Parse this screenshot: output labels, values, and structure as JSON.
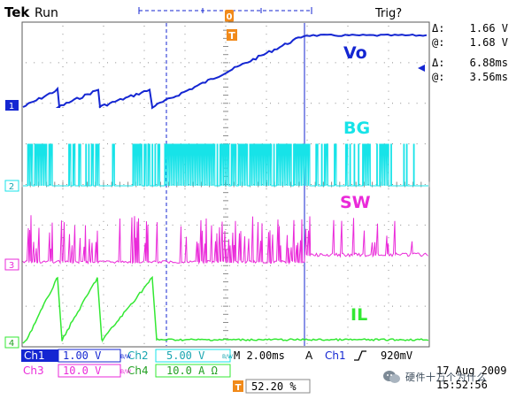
{
  "header": {
    "brand": "Tek",
    "run_state": "Run",
    "trig_state": "Trig?"
  },
  "trigger_marker": {
    "top_glyph": "T",
    "position_label": "0"
  },
  "cursor_readout": {
    "voltage_delta_label": "Δ:",
    "voltage_delta": "1.66 V",
    "voltage_at_label": "@:",
    "voltage_at": "1.68 V",
    "time_delta_label": "Δ:",
    "time_delta": "6.88ms",
    "time_at_label": "@:",
    "time_at": "3.56ms"
  },
  "trace_labels": {
    "vo": "Vo",
    "bg": "BG",
    "sw": "SW",
    "il": "IL"
  },
  "channel_markers": [
    "1",
    "2",
    "3",
    "4"
  ],
  "status_bar": {
    "ch1_label": "Ch1",
    "ch1_scale": "1.00 V",
    "ch2_label": "Ch2",
    "ch2_scale": "5.00 V",
    "bw_mark": "B/W",
    "timebase": "M 2.00ms",
    "acq_mode": "A",
    "trig_source": "Ch1",
    "trig_level": "920mV",
    "ch3_label": "Ch3",
    "ch3_scale": "10.0 V",
    "ch4_label": "Ch4",
    "ch4_scale": "10.0 A Ω",
    "trig_position": "52.20 %",
    "date": "17 Aug 2009",
    "time": "15:52:56"
  },
  "watermark": {
    "text": "硬件十万个为什么"
  },
  "colors": {
    "ch1": "#1426d2",
    "ch2": "#17e3e8",
    "ch3": "#ea2ad9",
    "ch4": "#33e833",
    "trigger": "#f18a1a",
    "graticule": "#5a5a5a",
    "text": "#000000"
  }
}
